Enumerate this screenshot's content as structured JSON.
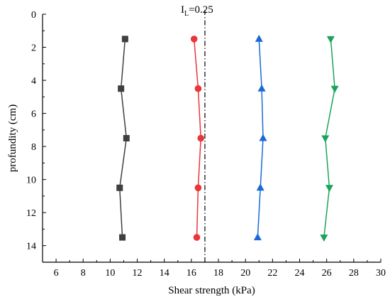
{
  "chart_data": {
    "type": "line",
    "title": "",
    "xlabel": "Shear strength (kPa)",
    "ylabel": "profundity (cm)",
    "xlim": [
      5,
      30
    ],
    "ylim": [
      0,
      15
    ],
    "y_inverted": true,
    "x_ticks": [
      6,
      8,
      10,
      12,
      14,
      16,
      18,
      20,
      22,
      24,
      26,
      28,
      30
    ],
    "y_ticks": [
      0,
      2,
      4,
      6,
      8,
      10,
      12,
      14
    ],
    "grid": false,
    "legend": "none",
    "series": [
      {
        "color": "#3f3f3f",
        "marker": "square",
        "points": [
          {
            "x": 11.1,
            "y": 1.5
          },
          {
            "x": 10.8,
            "y": 4.5
          },
          {
            "x": 11.2,
            "y": 7.5
          },
          {
            "x": 10.7,
            "y": 10.5
          },
          {
            "x": 10.9,
            "y": 13.5
          }
        ]
      },
      {
        "color": "#e8363b",
        "marker": "circle",
        "points": [
          {
            "x": 16.2,
            "y": 1.5
          },
          {
            "x": 16.5,
            "y": 4.5
          },
          {
            "x": 16.7,
            "y": 7.5
          },
          {
            "x": 16.5,
            "y": 10.5
          },
          {
            "x": 16.4,
            "y": 13.5
          }
        ]
      },
      {
        "color": "#1a6ad6",
        "marker": "triangle-up",
        "points": [
          {
            "x": 21.0,
            "y": 1.5
          },
          {
            "x": 21.2,
            "y": 4.5
          },
          {
            "x": 21.3,
            "y": 7.5
          },
          {
            "x": 21.1,
            "y": 10.5
          },
          {
            "x": 20.9,
            "y": 13.5
          }
        ]
      },
      {
        "color": "#1aa35a",
        "marker": "triangle-down",
        "points": [
          {
            "x": 26.3,
            "y": 1.5
          },
          {
            "x": 26.6,
            "y": 4.5
          },
          {
            "x": 25.9,
            "y": 7.5
          },
          {
            "x": 26.2,
            "y": 10.5
          },
          {
            "x": 25.8,
            "y": 13.5
          }
        ]
      }
    ],
    "reference_line": {
      "x": 17.0,
      "style": "dash-dot",
      "color": "#000000",
      "label_main": "I",
      "label_sub": "L",
      "label_value": "=0.25"
    }
  }
}
